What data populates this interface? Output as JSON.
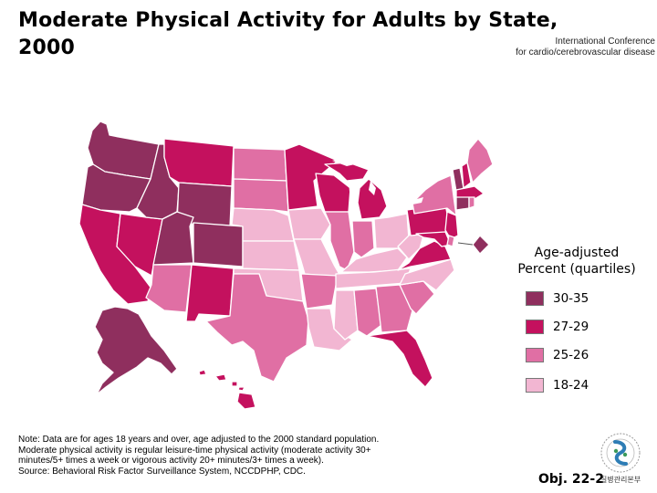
{
  "title": "Moderate Physical Activity for Adults by State, 2000",
  "conference": {
    "line1": "International Conference",
    "line2": "for cardio/cerebrovascular disease"
  },
  "legend": {
    "title_line1": "Age-adjusted",
    "title_line2": "Percent (quartiles)",
    "items": [
      {
        "label": "30-35",
        "color": "#8f2f5e"
      },
      {
        "label": "27-29",
        "color": "#c4115e"
      },
      {
        "label": "25-26",
        "color": "#e06fa4"
      },
      {
        "label": "18-24",
        "color": "#f2b6d2"
      }
    ]
  },
  "note": [
    "Note:  Data are for ages 18 years and over, age adjusted to the 2000 standard population.",
    "Moderate physical activity is regular leisure-time physical activity (moderate activity 30+",
    "minutes/5+ times a week or vigorous activity 20+ minutes/3+ times a week).",
    "Source: Behavioral Risk Factor Surveillance System, NCCDPHP, CDC."
  ],
  "objective": "Obj. 22-2",
  "logo": {
    "caption": "질병관리본부"
  },
  "map": {
    "WA": "q1",
    "OR": "q1",
    "ID": "q1",
    "WY": "q1",
    "UT": "q1",
    "CO": "q1",
    "AK": "q1",
    "VT": "q1",
    "CT": "q1",
    "DC": "q1",
    "CA": "q2",
    "NV": "q2",
    "MT": "q2",
    "NM": "q2",
    "MN": "q2",
    "WI": "q2",
    "MI": "q2",
    "VA": "q2",
    "PA": "q2",
    "NJ": "q2",
    "MD": "q2",
    "FL": "q2",
    "HI": "q2",
    "MA": "q2",
    "NH": "q2",
    "AZ": "q3",
    "TX": "q3",
    "ND": "q3",
    "SD": "q3",
    "IL": "q3",
    "IN": "q3",
    "AL": "q3",
    "GA": "q3",
    "AR": "q3",
    "NY": "q3",
    "ME": "q3",
    "DE": "q3",
    "RI": "q3",
    "SC": "q3",
    "NE": "q4",
    "KS": "q4",
    "OK": "q4",
    "IA": "q4",
    "MO": "q4",
    "OH": "q4",
    "KY": "q4",
    "TN": "q4",
    "WV": "q4",
    "NC": "q4",
    "LA": "q4",
    "MS": "q4"
  }
}
